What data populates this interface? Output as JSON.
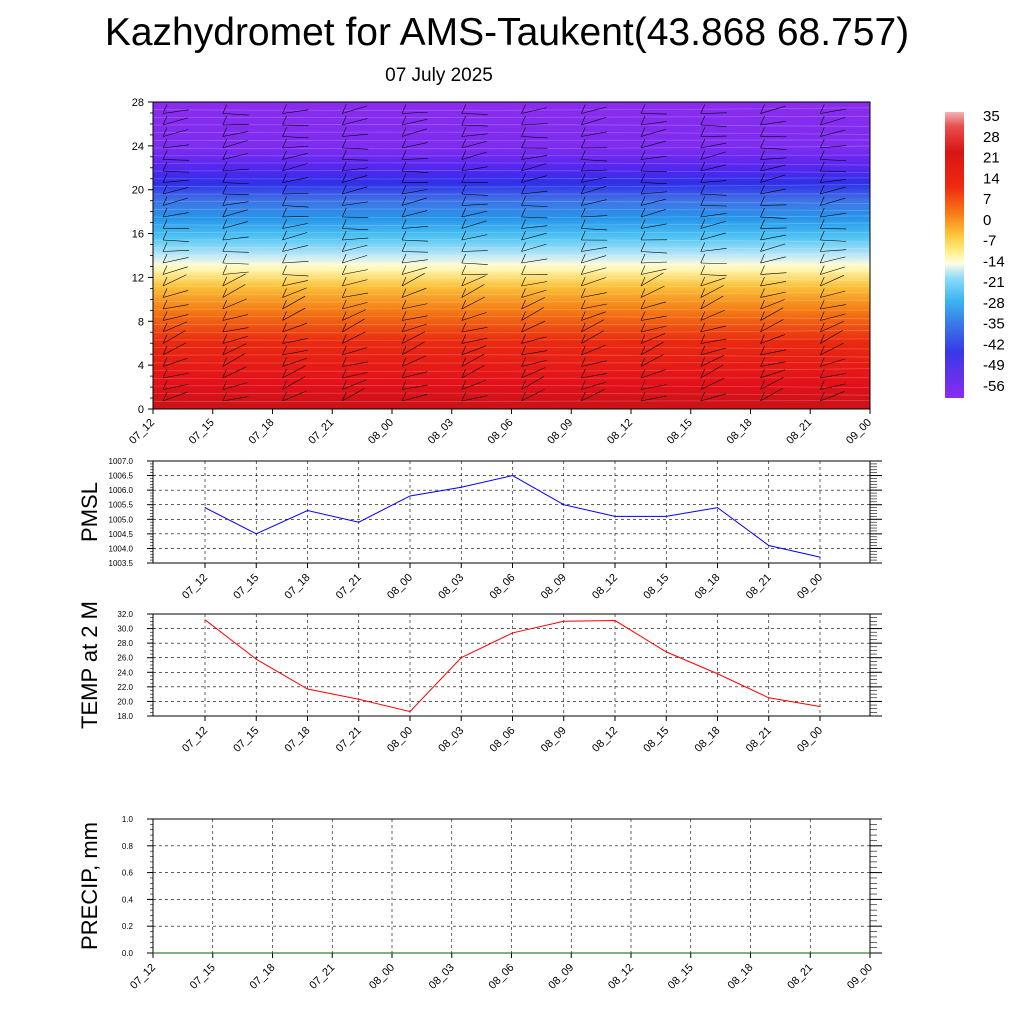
{
  "title": "Kazhydromet for AMS-Taukent(43.868 68.757)",
  "subtitle": "07 July 2025",
  "time_labels": [
    "07_12",
    "07_15",
    "07_18",
    "07_21",
    "08_00",
    "08_03",
    "08_06",
    "08_09",
    "08_12",
    "08_15",
    "08_18",
    "08_21",
    "09_00"
  ],
  "colorbar": {
    "labels": [
      "35",
      "28",
      "21",
      "14",
      "7",
      "0",
      "-7",
      "-14",
      "-21",
      "-28",
      "-35",
      "-42",
      "-49",
      "-56"
    ]
  },
  "chart_data": [
    {
      "type": "heatmap",
      "title": "",
      "xlabel": "",
      "ylabel": "",
      "x": [
        "07_12",
        "07_15",
        "07_18",
        "07_21",
        "08_00",
        "08_03",
        "08_06",
        "08_09",
        "08_12",
        "08_15",
        "08_18",
        "08_21",
        "09_00"
      ],
      "yticks": [
        "0",
        "4",
        "8",
        "12",
        "16",
        "20",
        "24",
        "28"
      ],
      "ylim": [
        0,
        28
      ],
      "description_of_field": "temperature by height level with wind barbs",
      "colorbar_range": [
        -56,
        35
      ]
    },
    {
      "type": "line",
      "ylabel": "PMSL",
      "x": [
        "07_12",
        "07_15",
        "07_18",
        "07_21",
        "08_00",
        "08_03",
        "08_06",
        "08_09",
        "08_12",
        "08_15",
        "08_18",
        "08_21",
        "09_00"
      ],
      "yticks": [
        "1003.5",
        "1004.0",
        "1004.5",
        "1005.0",
        "1005.5",
        "1006.0",
        "1006.5",
        "1007.0"
      ],
      "ylim": [
        1003.5,
        1007.0
      ],
      "series": [
        {
          "color": "#0000ff",
          "values": [
            1005.4,
            1004.5,
            1005.3,
            1004.9,
            1005.8,
            1006.1,
            1006.5,
            1005.5,
            1005.1,
            1005.1,
            1005.4,
            1004.1,
            1003.7
          ]
        }
      ]
    },
    {
      "type": "line",
      "ylabel": "TEMP at 2 M",
      "x": [
        "07_12",
        "07_15",
        "07_18",
        "07_21",
        "08_00",
        "08_03",
        "08_06",
        "08_09",
        "08_12",
        "08_15",
        "08_18",
        "08_21",
        "09_00"
      ],
      "yticks": [
        "18.0",
        "20.0",
        "22.0",
        "24.0",
        "26.0",
        "28.0",
        "30.0",
        "32.0"
      ],
      "ylim": [
        18.0,
        32.0
      ],
      "series": [
        {
          "color": "#ff0000",
          "values": [
            31.2,
            25.8,
            21.7,
            20.3,
            18.6,
            26.0,
            29.4,
            31.0,
            31.1,
            26.8,
            23.8,
            20.5,
            19.3
          ]
        }
      ]
    },
    {
      "type": "line",
      "ylabel": "PRECIP, mm",
      "x": [
        "07_12",
        "07_15",
        "07_18",
        "07_21",
        "08_00",
        "08_03",
        "08_06",
        "08_09",
        "08_12",
        "08_15",
        "08_18",
        "08_21",
        "09_00"
      ],
      "yticks": [
        "0.0",
        "0.2",
        "0.4",
        "0.6",
        "0.8",
        "1.0"
      ],
      "ylim": [
        0.0,
        1.0
      ],
      "series": [
        {
          "color": "#006400",
          "values": [
            0,
            0,
            0,
            0,
            0,
            0,
            0,
            0,
            0,
            0,
            0,
            0,
            0
          ]
        }
      ]
    }
  ]
}
